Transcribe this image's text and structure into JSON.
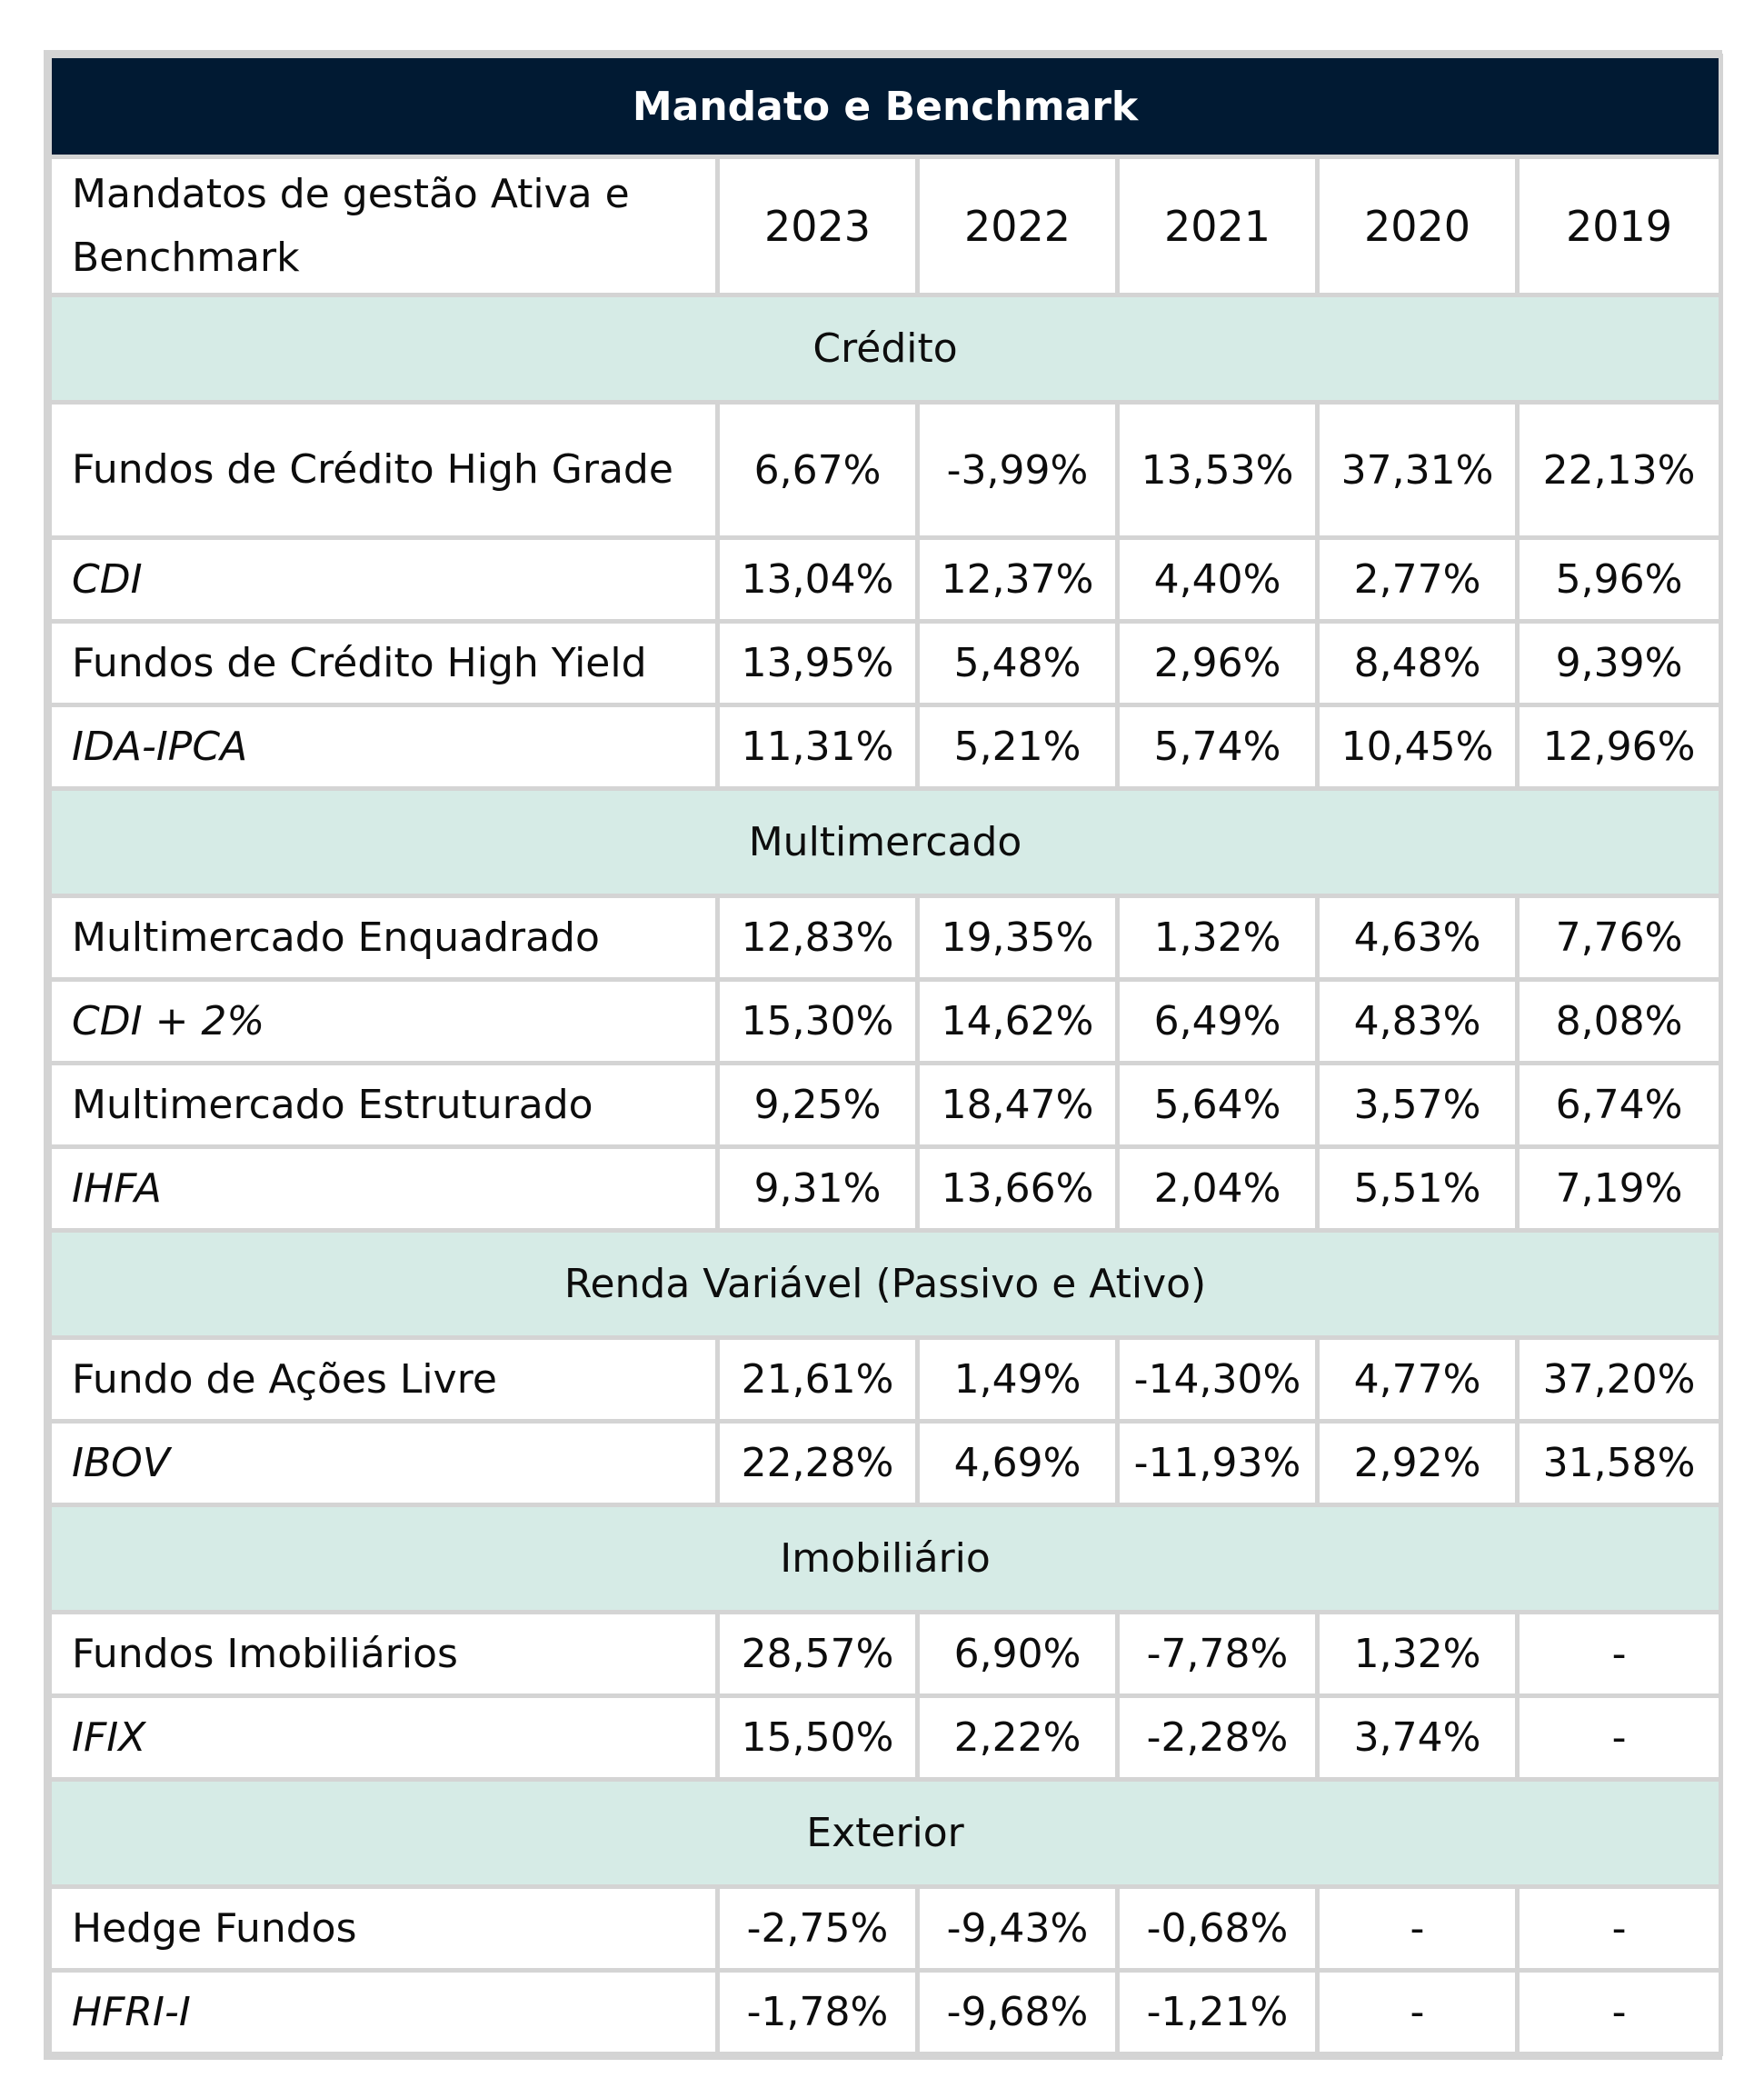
{
  "title": "Mandato e Benchmark",
  "header": {
    "label": "Mandatos de gestão Ativa e Benchmark",
    "years": [
      "2023",
      "2022",
      "2021",
      "2020",
      "2019"
    ]
  },
  "sections": [
    {
      "name": "Crédito",
      "rows": [
        {
          "label": "Fundos de Crédito High Grade",
          "italic": false,
          "values": [
            "6,67%",
            "-3,99%",
            "13,53%",
            "37,31%",
            "22,13%"
          ]
        },
        {
          "label": "CDI",
          "italic": true,
          "values": [
            "13,04%",
            "12,37%",
            "4,40%",
            "2,77%",
            "5,96%"
          ]
        },
        {
          "label": "Fundos de Crédito High Yield",
          "italic": false,
          "values": [
            "13,95%",
            "5,48%",
            "2,96%",
            "8,48%",
            "9,39%"
          ]
        },
        {
          "label": "IDA-IPCA",
          "italic": true,
          "values": [
            "11,31%",
            "5,21%",
            "5,74%",
            "10,45%",
            "12,96%"
          ]
        }
      ]
    },
    {
      "name": "Multimercado",
      "rows": [
        {
          "label": "Multimercado Enquadrado",
          "italic": false,
          "values": [
            "12,83%",
            "19,35%",
            "1,32%",
            "4,63%",
            "7,76%"
          ]
        },
        {
          "label": "CDI + 2%",
          "italic": true,
          "values": [
            "15,30%",
            "14,62%",
            "6,49%",
            "4,83%",
            "8,08%"
          ]
        },
        {
          "label": "Multimercado Estruturado",
          "italic": false,
          "values": [
            "9,25%",
            "18,47%",
            "5,64%",
            "3,57%",
            "6,74%"
          ]
        },
        {
          "label": "IHFA",
          "italic": true,
          "values": [
            "9,31%",
            "13,66%",
            "2,04%",
            "5,51%",
            "7,19%"
          ]
        }
      ]
    },
    {
      "name": "Renda Variável (Passivo e Ativo)",
      "rows": [
        {
          "label": "Fundo de Ações Livre",
          "italic": false,
          "values": [
            "21,61%",
            "1,49%",
            "-14,30%",
            "4,77%",
            "37,20%"
          ]
        },
        {
          "label": "IBOV",
          "italic": true,
          "values": [
            "22,28%",
            "4,69%",
            "-11,93%",
            "2,92%",
            "31,58%"
          ]
        }
      ]
    },
    {
      "name": "Imobiliário",
      "rows": [
        {
          "label": "Fundos Imobiliários",
          "italic": false,
          "values": [
            "28,57%",
            "6,90%",
            "-7,78%",
            "1,32%",
            "-"
          ]
        },
        {
          "label": "IFIX",
          "italic": true,
          "values": [
            "15,50%",
            "2,22%",
            "-2,28%",
            "3,74%",
            "-"
          ]
        }
      ]
    },
    {
      "name": "Exterior",
      "rows": [
        {
          "label": "Hedge Fundos",
          "italic": false,
          "values": [
            "-2,75%",
            "-9,43%",
            "-0,68%",
            "-",
            "-"
          ]
        },
        {
          "label": "HFRI-I",
          "italic": true,
          "values": [
            "-1,78%",
            "-9,68%",
            "-1,21%",
            "-",
            "-"
          ]
        }
      ]
    }
  ],
  "colors": {
    "title_bg": "#011a33",
    "section_bg": "#d6ebe6",
    "grid": "#d4d4d4"
  }
}
